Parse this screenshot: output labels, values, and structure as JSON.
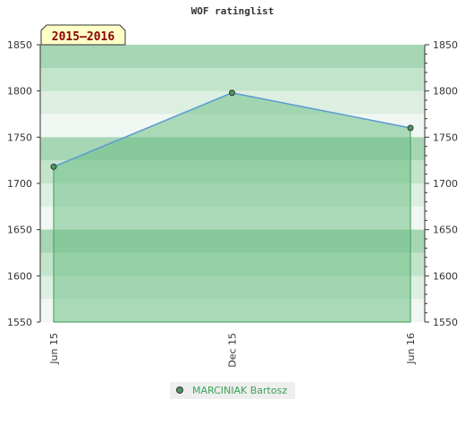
{
  "chart_data": {
    "type": "area",
    "title": "WOF ratinglist",
    "season": "2015–2016",
    "categories": [
      "Jun 15",
      "Dec 15",
      "Jun 16"
    ],
    "series": [
      {
        "name": "MARCINIAK Bartosz",
        "values": [
          1718,
          1798,
          1760
        ]
      }
    ],
    "ylim": [
      1550,
      1850
    ],
    "yticks": [
      1550,
      1600,
      1650,
      1700,
      1750,
      1800,
      1850
    ],
    "y_axis_sides": [
      "left",
      "right"
    ],
    "grid": "alternating horizontal bands",
    "legend_position": "bottom-center",
    "colors": {
      "line": "#5b9bd5",
      "marker": "#4c9a5c",
      "area": "#6fbf86",
      "bands": [
        "#a6d6b4",
        "#c2e4cb",
        "#dcefe1",
        "#f1f8f3"
      ],
      "season_badge_fill": "#ffffc8",
      "season_badge_text": "#8b0000",
      "legend_text": "#3aa55a",
      "legend_bg": "#eeeeee"
    }
  }
}
